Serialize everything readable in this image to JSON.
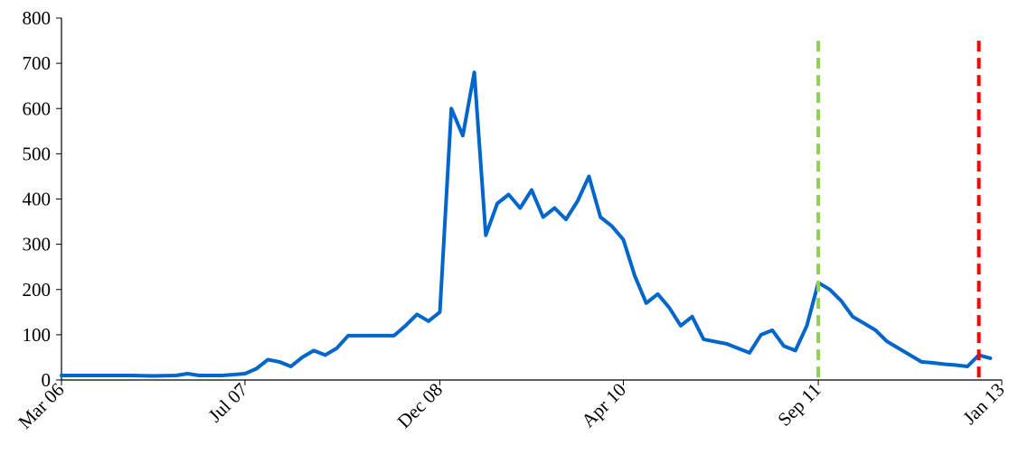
{
  "chart_data": {
    "type": "line",
    "title": "",
    "xlabel": "",
    "ylabel": "",
    "ylim": [
      0,
      800
    ],
    "yticks": [
      0,
      100,
      200,
      300,
      400,
      500,
      600,
      700,
      800
    ],
    "xlim": [
      "2006-03",
      "2013-01"
    ],
    "xticks": [
      {
        "date": "2006-03",
        "label": "Mar 06"
      },
      {
        "date": "2007-07",
        "label": "Jul 07"
      },
      {
        "date": "2008-12",
        "label": "Dec 08"
      },
      {
        "date": "2010-04",
        "label": "Apr 10"
      },
      {
        "date": "2011-09",
        "label": "Sep 11"
      },
      {
        "date": "2013-01",
        "label": "Jan 13"
      }
    ],
    "grid": false,
    "legend": "none",
    "series": [
      {
        "color": "#0066CC",
        "points": [
          [
            "2006-03",
            10
          ],
          [
            "2006-05",
            10
          ],
          [
            "2006-07",
            10
          ],
          [
            "2006-09",
            10
          ],
          [
            "2006-11",
            9
          ],
          [
            "2007-01",
            10
          ],
          [
            "2007-02",
            14
          ],
          [
            "2007-03",
            10
          ],
          [
            "2007-05",
            10
          ],
          [
            "2007-07",
            14
          ],
          [
            "2007-08",
            25
          ],
          [
            "2007-09",
            45
          ],
          [
            "2007-10",
            40
          ],
          [
            "2007-11",
            30
          ],
          [
            "2007-12",
            50
          ],
          [
            "2008-01",
            65
          ],
          [
            "2008-02",
            55
          ],
          [
            "2008-03",
            70
          ],
          [
            "2008-04",
            98
          ],
          [
            "2008-05",
            98
          ],
          [
            "2008-06",
            98
          ],
          [
            "2008-07",
            98
          ],
          [
            "2008-08",
            98
          ],
          [
            "2008-09",
            120
          ],
          [
            "2008-10",
            145
          ],
          [
            "2008-11",
            130
          ],
          [
            "2008-12",
            150
          ],
          [
            "2009-01",
            600
          ],
          [
            "2009-02",
            540
          ],
          [
            "2009-03",
            680
          ],
          [
            "2009-04",
            320
          ],
          [
            "2009-05",
            390
          ],
          [
            "2009-06",
            410
          ],
          [
            "2009-07",
            380
          ],
          [
            "2009-08",
            420
          ],
          [
            "2009-09",
            360
          ],
          [
            "2009-10",
            380
          ],
          [
            "2009-11",
            355
          ],
          [
            "2009-12",
            395
          ],
          [
            "2010-01",
            450
          ],
          [
            "2010-02",
            360
          ],
          [
            "2010-03",
            340
          ],
          [
            "2010-04",
            310
          ],
          [
            "2010-05",
            230
          ],
          [
            "2010-06",
            170
          ],
          [
            "2010-07",
            190
          ],
          [
            "2010-08",
            160
          ],
          [
            "2010-09",
            120
          ],
          [
            "2010-10",
            140
          ],
          [
            "2010-11",
            90
          ],
          [
            "2010-12",
            85
          ],
          [
            "2011-01",
            80
          ],
          [
            "2011-02",
            70
          ],
          [
            "2011-03",
            60
          ],
          [
            "2011-04",
            100
          ],
          [
            "2011-05",
            110
          ],
          [
            "2011-06",
            75
          ],
          [
            "2011-07",
            65
          ],
          [
            "2011-08",
            120
          ],
          [
            "2011-09",
            215
          ],
          [
            "2011-10",
            200
          ],
          [
            "2011-11",
            175
          ],
          [
            "2011-12",
            140
          ],
          [
            "2012-01",
            125
          ],
          [
            "2012-02",
            110
          ],
          [
            "2012-03",
            85
          ],
          [
            "2012-04",
            70
          ],
          [
            "2012-05",
            55
          ],
          [
            "2012-06",
            40
          ],
          [
            "2012-07",
            38
          ],
          [
            "2012-08",
            35
          ],
          [
            "2012-09",
            33
          ],
          [
            "2012-10",
            30
          ],
          [
            "2012-11",
            55
          ],
          [
            "2012-12",
            48
          ]
        ]
      }
    ],
    "annotations": [
      {
        "type": "vertical-dashed-line",
        "date": "2011-09",
        "color": "#92D050"
      },
      {
        "type": "vertical-dashed-line",
        "date": "2012-11",
        "color": "#FF0000"
      }
    ]
  }
}
